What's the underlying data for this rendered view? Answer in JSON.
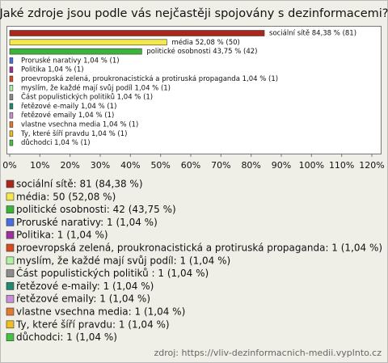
{
  "chart_data": {
    "type": "hbar",
    "title": "Jaké zdroje jsou podle vás nejčastěji spojovány s dezinformacemi?",
    "categories": [
      "sociální sítě",
      "média",
      "politické osobnosti",
      "Proruské narativy",
      "Politika",
      "proevropská zelená, proukronacistická a protiruská propaganda",
      "myslím, že každé mají svůj podíl",
      "Část populistických politiků ",
      "řetězové e-maily",
      "řetězové emaily",
      "vlastne vsechna media",
      "Ty, které šíří pravdu",
      "důchodci"
    ],
    "values": [
      84.38,
      52.08,
      43.75,
      1.04,
      1.04,
      1.04,
      1.04,
      1.04,
      1.04,
      1.04,
      1.04,
      1.04,
      1.04
    ],
    "value_labels": [
      "sociální sítě 84,38 % (81)",
      "média 52,08 % (50)",
      "politické osobnosti 43,75 % (42)",
      "Proruské narativy 1,04 % (1)",
      "Politika 1,04 % (1)",
      "proevropská zelená, proukronacistická a protiruská propaganda 1,04 % (1)",
      "myslím, že každé mají svůj podíl 1,04 % (1)",
      "Část populistických politiků  1,04 % (1)",
      "řetězové e-maily 1,04 % (1)",
      "řetězové emaily 1,04 % (1)",
      "vlastne vsechna media 1,04 % (1)",
      "Ty, které šíří pravdu 1,04 % (1)",
      "důchodci 1,04 % (1)"
    ],
    "legend_labels": [
      "sociální sítě: 81 (84,38 %)",
      "média: 50 (52,08 %)",
      "politické osobnosti: 42 (43,75 %)",
      "Proruské narativy: 1 (1,04 %)",
      "Politika: 1 (1,04 %)",
      "proevropská zelená, proukronacistická a protiruská propaganda: 1 (1,04 %)",
      "myslím, že každé mají svůj podíl: 1 (1,04 %)",
      "Část populistických politiků : 1 (1,04 %)",
      "řetězové e-maily: 1 (1,04 %)",
      "řetězové emaily: 1 (1,04 %)",
      "vlastne vsechna media: 1 (1,04 %)",
      "Ty, které šíří pravdu: 1 (1,04 %)",
      "důchodci: 1 (1,04 %)"
    ],
    "colors": [
      "#a8281c",
      "#f4e84a",
      "#3cb43c",
      "#4a6ee0",
      "#a030a0",
      "#d84a20",
      "#b4f0a4",
      "#8c8c8c",
      "#208a70",
      "#c890d8",
      "#e07a30",
      "#f0c020",
      "#44c044"
    ],
    "xlim": [
      0,
      120
    ],
    "xticks": [
      {
        "value": 0,
        "label": "0%"
      },
      {
        "value": 10,
        "label": "10%"
      },
      {
        "value": 20,
        "label": "20%"
      },
      {
        "value": 30,
        "label": "30%"
      },
      {
        "value": 40,
        "label": "40%"
      },
      {
        "value": 50,
        "label": "50%"
      },
      {
        "value": 60,
        "label": "60%"
      },
      {
        "value": 70,
        "label": "70%"
      },
      {
        "value": 80,
        "label": "80%"
      },
      {
        "value": 90,
        "label": "90%"
      },
      {
        "value": 100,
        "label": "100%"
      },
      {
        "value": 110,
        "label": "110%"
      },
      {
        "value": 120,
        "label": "120%"
      }
    ],
    "grid": false,
    "source": "zdroj: https://vliv-dezinformacnich-medii.vyplnto.cz"
  }
}
